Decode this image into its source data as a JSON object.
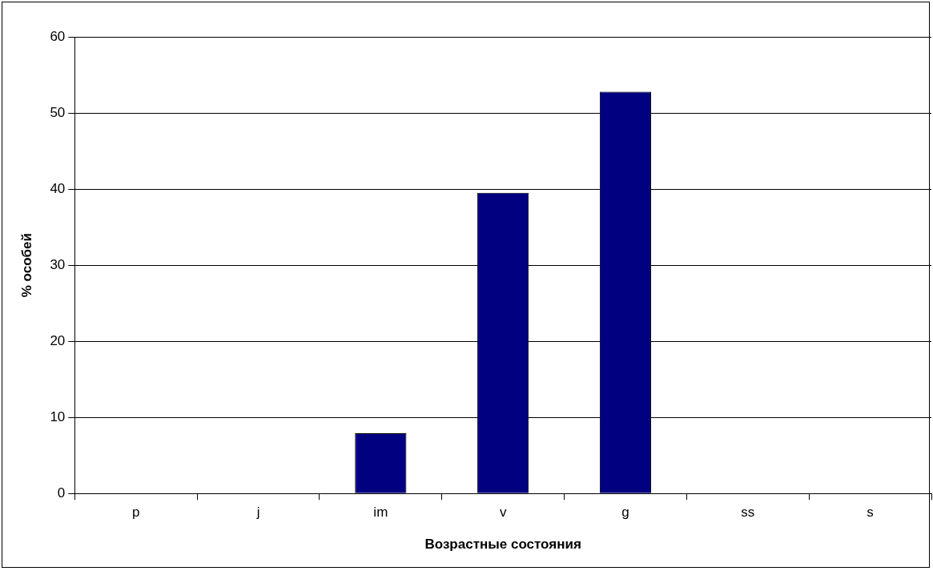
{
  "chart_data": {
    "type": "bar",
    "xlabel": "Возрастные состояния",
    "ylabel": "% особей",
    "categories": [
      "p",
      "j",
      "im",
      "v",
      "g",
      "ss",
      "s"
    ],
    "values": [
      0,
      0,
      7.9,
      39.5,
      52.8,
      0,
      0
    ],
    "color": "#000080",
    "ylim": [
      0,
      60
    ],
    "yticks": [
      0,
      10,
      20,
      30,
      40,
      50,
      60
    ],
    "grid": "y",
    "legend": false
  }
}
